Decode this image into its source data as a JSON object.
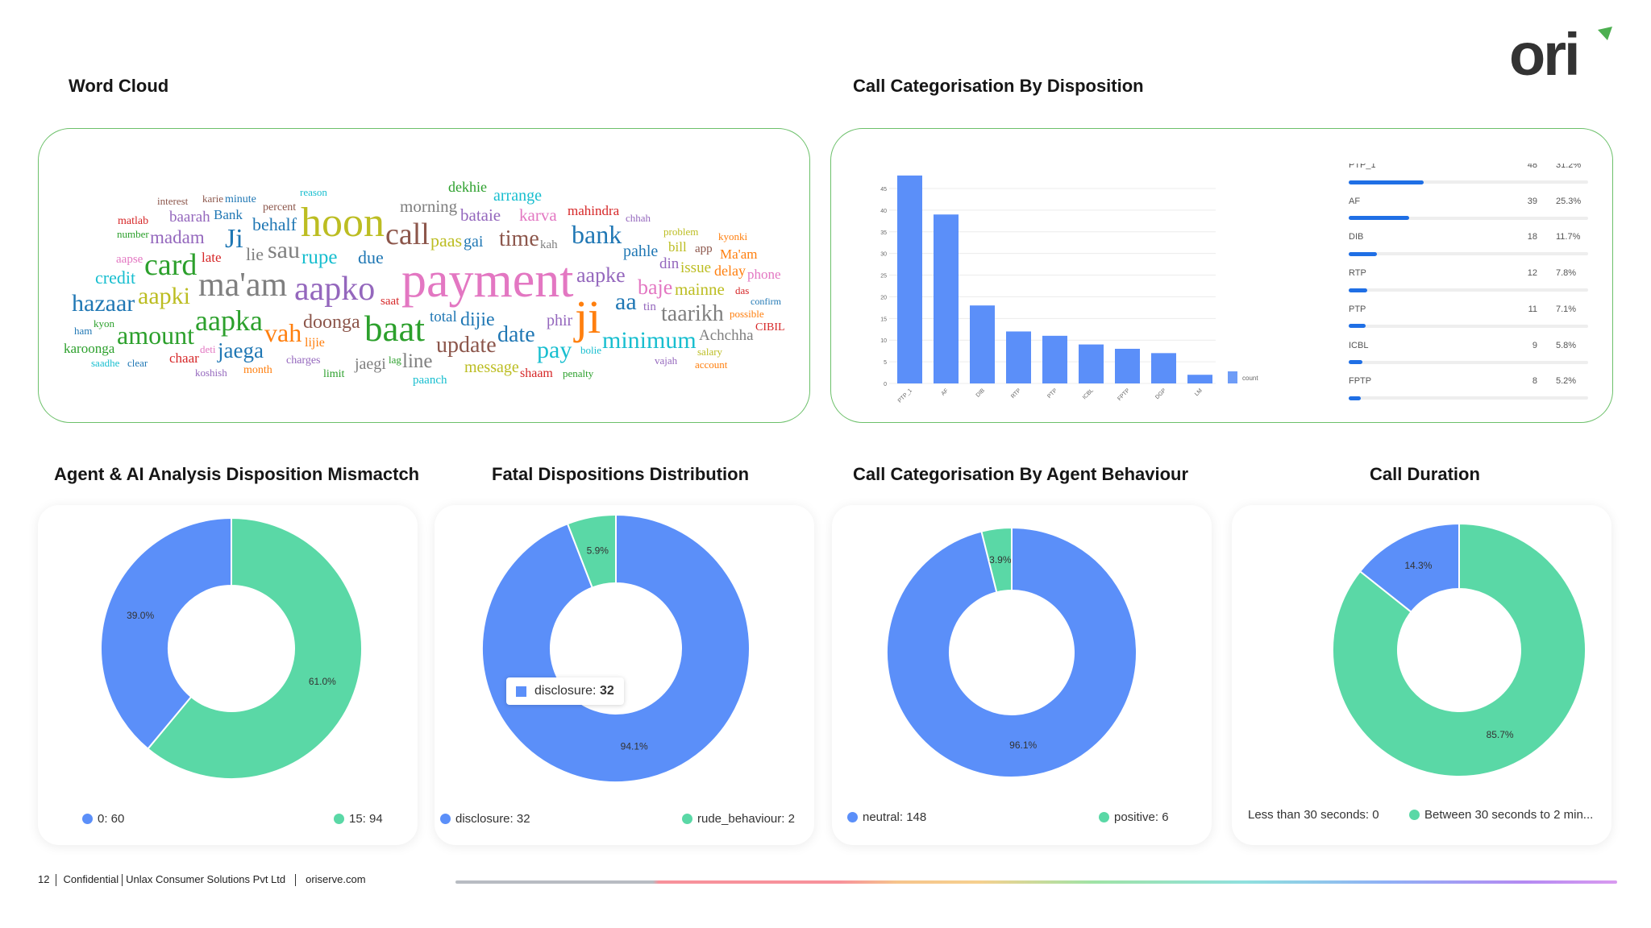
{
  "logo": {
    "text": "ori",
    "accent": "#4caf50"
  },
  "word_cloud": {
    "title": "Word Cloud",
    "words": [
      {
        "text": "interest",
        "color": "#8c564b"
      },
      {
        "text": "matlab",
        "color": "#d62728"
      },
      {
        "text": "karie",
        "color": "#8c564b"
      },
      {
        "text": "percent",
        "color": "#8c564b"
      },
      {
        "text": "hoon",
        "color": "#bcbd22"
      },
      {
        "text": "baarah",
        "color": "#9467bd"
      },
      {
        "text": "number",
        "color": "#2ca02c"
      },
      {
        "text": "morning",
        "color": "#7f7f7f"
      },
      {
        "text": "Ji",
        "color": "#1f77b4"
      },
      {
        "text": "behalf",
        "color": "#1f77b4"
      },
      {
        "text": "madam",
        "color": "#9467bd"
      },
      {
        "text": "reason",
        "color": "#17becf"
      },
      {
        "text": "due",
        "color": "#1f77b4"
      },
      {
        "text": "bataie",
        "color": "#9467bd"
      },
      {
        "text": "minute",
        "color": "#1f77b4"
      },
      {
        "text": "rupe",
        "color": "#17becf"
      },
      {
        "text": "paas",
        "color": "#bcbd22"
      },
      {
        "text": "aapse",
        "color": "#e377c2"
      },
      {
        "text": "Bank",
        "color": "#1f77b4"
      },
      {
        "text": "total",
        "color": "#1f77b4"
      },
      {
        "text": "card",
        "color": "#2ca02c"
      },
      {
        "text": "lie",
        "color": "#7f7f7f"
      },
      {
        "text": "late",
        "color": "#d62728"
      },
      {
        "text": "sau",
        "color": "#7f7f7f"
      },
      {
        "text": "call",
        "color": "#8c564b"
      },
      {
        "text": "credit",
        "color": "#17becf"
      },
      {
        "text": "ma'am",
        "color": "#7f7f7f"
      },
      {
        "text": "aapko",
        "color": "#9467bd"
      },
      {
        "text": "aapki",
        "color": "#bcbd22"
      },
      {
        "text": "saat",
        "color": "#d62728"
      },
      {
        "text": "lijie",
        "color": "#ff7f0e"
      },
      {
        "text": "hazaar",
        "color": "#1f77b4"
      },
      {
        "text": "aapka",
        "color": "#2ca02c"
      },
      {
        "text": "kyon",
        "color": "#2ca02c"
      },
      {
        "text": "doonga",
        "color": "#8c564b"
      },
      {
        "text": "baat",
        "color": "#2ca02c"
      },
      {
        "text": "vah",
        "color": "#ff7f0e"
      },
      {
        "text": "ham",
        "color": "#1f77b4"
      },
      {
        "text": "amount",
        "color": "#2ca02c"
      },
      {
        "text": "deti",
        "color": "#e377c2"
      },
      {
        "text": "karoonga",
        "color": "#2ca02c"
      },
      {
        "text": "jaega",
        "color": "#1f77b4"
      },
      {
        "text": "lag",
        "color": "#2ca02c"
      },
      {
        "text": "line",
        "color": "#7f7f7f"
      },
      {
        "text": "chaar",
        "color": "#d62728"
      },
      {
        "text": "saadhe",
        "color": "#17becf"
      },
      {
        "text": "clear",
        "color": "#1f77b4"
      },
      {
        "text": "month",
        "color": "#ff7f0e"
      },
      {
        "text": "charges",
        "color": "#9467bd"
      },
      {
        "text": "koshish",
        "color": "#9467bd"
      },
      {
        "text": "jaegi",
        "color": "#7f7f7f"
      },
      {
        "text": "limit",
        "color": "#2ca02c"
      },
      {
        "text": "paanch",
        "color": "#17becf"
      },
      {
        "text": "dekhie",
        "color": "#2ca02c"
      },
      {
        "text": "karva",
        "color": "#e377c2"
      },
      {
        "text": "bank",
        "color": "#1f77b4"
      },
      {
        "text": "chhah",
        "color": "#9467bd"
      },
      {
        "text": "kah",
        "color": "#7f7f7f"
      },
      {
        "text": "time",
        "color": "#8c564b"
      },
      {
        "text": "problem",
        "color": "#bcbd22"
      },
      {
        "text": "kyonki",
        "color": "#ff7f0e"
      },
      {
        "text": "gai",
        "color": "#1f77b4"
      },
      {
        "text": "arrange",
        "color": "#17becf"
      },
      {
        "text": "mahindra",
        "color": "#d62728"
      },
      {
        "text": "pahle",
        "color": "#1f77b4"
      },
      {
        "text": "bill",
        "color": "#bcbd22"
      },
      {
        "text": "app",
        "color": "#8c564b"
      },
      {
        "text": "Ma'am",
        "color": "#ff7f0e"
      },
      {
        "text": "payment",
        "color": "#e377c2"
      },
      {
        "text": "din",
        "color": "#9467bd"
      },
      {
        "text": "issue",
        "color": "#bcbd22"
      },
      {
        "text": "delay",
        "color": "#ff7f0e"
      },
      {
        "text": "phone",
        "color": "#e377c2"
      },
      {
        "text": "tin",
        "color": "#9467bd"
      },
      {
        "text": "baje",
        "color": "#e377c2"
      },
      {
        "text": "das",
        "color": "#d62728"
      },
      {
        "text": "mainne",
        "color": "#bcbd22"
      },
      {
        "text": "confirm",
        "color": "#1f77b4"
      },
      {
        "text": "aa",
        "color": "#1f77b4"
      },
      {
        "text": "dijie",
        "color": "#1f77b4"
      },
      {
        "text": "aapke",
        "color": "#9467bd"
      },
      {
        "text": "ji",
        "color": "#ff7f0e"
      },
      {
        "text": "phir",
        "color": "#9467bd"
      },
      {
        "text": "taarikh",
        "color": "#7f7f7f"
      },
      {
        "text": "possible",
        "color": "#ff7f0e"
      },
      {
        "text": "bolie",
        "color": "#17becf"
      },
      {
        "text": "shaam",
        "color": "#d62728"
      },
      {
        "text": "CIBIL",
        "color": "#d62728"
      },
      {
        "text": "date",
        "color": "#1f77b4"
      },
      {
        "text": "minimum",
        "color": "#17becf"
      },
      {
        "text": "Achchha",
        "color": "#7f7f7f"
      },
      {
        "text": "update",
        "color": "#8c564b"
      },
      {
        "text": "pay",
        "color": "#17becf"
      },
      {
        "text": "salary",
        "color": "#bcbd22"
      },
      {
        "text": "message",
        "color": "#bcbd22"
      },
      {
        "text": "vajah",
        "color": "#9467bd"
      },
      {
        "text": "account",
        "color": "#ff7f0e"
      },
      {
        "text": "penalty",
        "color": "#2ca02c"
      }
    ]
  },
  "disposition_list": {
    "rows": [
      {
        "label": "PTP_1",
        "count": "48",
        "pct": "31.2%",
        "fraction": 0.312
      },
      {
        "label": "AF",
        "count": "39",
        "pct": "25.3%",
        "fraction": 0.253
      },
      {
        "label": "DIB",
        "count": "18",
        "pct": "11.7%",
        "fraction": 0.117
      },
      {
        "label": "RTP",
        "count": "12",
        "pct": "7.8%",
        "fraction": 0.078
      },
      {
        "label": "PTP",
        "count": "11",
        "pct": "7.1%",
        "fraction": 0.071
      },
      {
        "label": "ICBL",
        "count": "9",
        "pct": "5.8%",
        "fraction": 0.058
      },
      {
        "label": "FPTP",
        "count": "8",
        "pct": "5.2%",
        "fraction": 0.052
      }
    ]
  },
  "chart_data": [
    {
      "type": "bar",
      "title": "Call Categorisation By Disposition",
      "categories": [
        "PTP_1",
        "AF",
        "DIB",
        "RTP",
        "PTP",
        "ICBL",
        "FPTP",
        "DGP",
        "LM"
      ],
      "series": [
        {
          "name": "count",
          "values": [
            48,
            39,
            18,
            12,
            11,
            9,
            8,
            7,
            2
          ],
          "color": "#5b8ff9"
        }
      ],
      "yticks": [
        "0",
        "5",
        "10",
        "15",
        "20",
        "25",
        "30",
        "35",
        "40",
        "45"
      ],
      "ylim": [
        0,
        48
      ],
      "grid": true,
      "legend": "right"
    },
    {
      "type": "pie",
      "title": "Agent & AI Analysis Disposition Mismactch",
      "slices": [
        {
          "name": "15",
          "value": 94,
          "label": "61.0%",
          "color": "#5ad8a6"
        },
        {
          "name": "0",
          "value": 60,
          "label": "39.0%",
          "color": "#5b8ff9"
        }
      ],
      "legend": [
        "0: 60",
        "15: 94"
      ]
    },
    {
      "type": "pie",
      "title": "Fatal Dispositions Distribution",
      "slices": [
        {
          "name": "disclosure",
          "value": 32,
          "label": "94.1%",
          "color": "#5b8ff9"
        },
        {
          "name": "rude_behaviour",
          "value": 2,
          "label": "5.9%",
          "color": "#5ad8a6"
        }
      ],
      "legend": [
        "disclosure: 32",
        "rude_behaviour: 2"
      ],
      "tooltip": {
        "name": "disclosure:",
        "value": "32"
      }
    },
    {
      "type": "pie",
      "title": "Call Categorisation By Agent Behaviour",
      "slices": [
        {
          "name": "neutral",
          "value": 148,
          "label": "96.1%",
          "color": "#5b8ff9"
        },
        {
          "name": "positive",
          "value": 6,
          "label": "3.9%",
          "color": "#5ad8a6"
        }
      ],
      "legend": [
        "neutral: 148",
        "positive: 6"
      ]
    },
    {
      "type": "pie",
      "title": "Call Duration",
      "slices": [
        {
          "name": "Between 30 seconds to 2 min...",
          "value": 85.7,
          "label": "85.7%",
          "color": "#5ad8a6"
        },
        {
          "name": "",
          "value": 14.3,
          "label": "14.3%",
          "color": "#5b8ff9"
        }
      ],
      "legend": [
        "Less than 30 seconds: 0",
        "Between 30 seconds to 2 min..."
      ]
    }
  ],
  "footer": {
    "page": "12",
    "confidential": "Confidential",
    "company": "Unlax Consumer Solutions Pvt Ltd",
    "site": "oriserve.com"
  }
}
